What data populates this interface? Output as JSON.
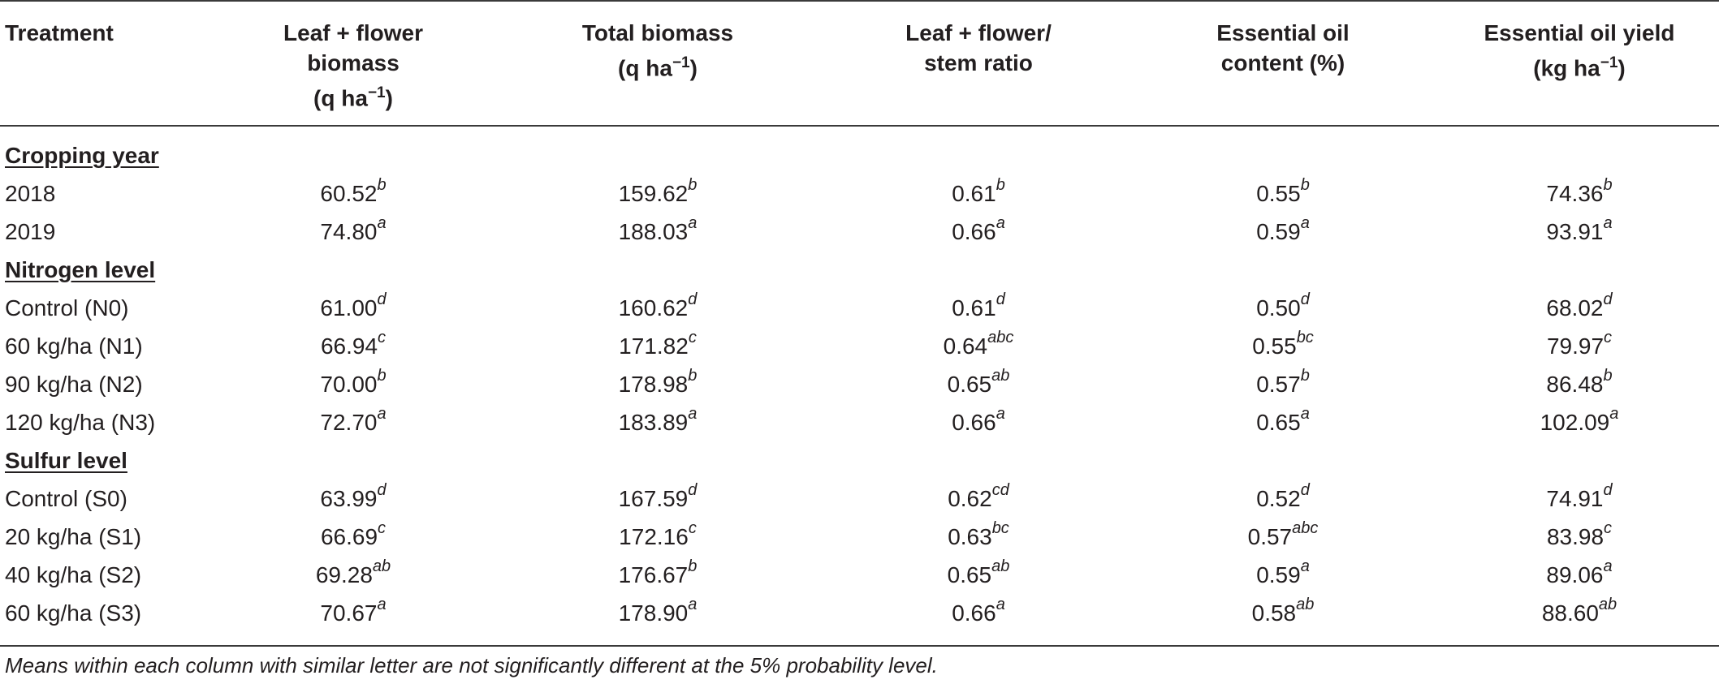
{
  "headers": [
    "Treatment",
    "Leaf + flower biomass (q ha−1)",
    "Total biomass (q ha−1)",
    "Leaf + flower/ stem ratio",
    "Essential oil content (%)",
    "Essential oil yield (kg ha−1)"
  ],
  "header_lines": {
    "c0": [
      "Treatment"
    ],
    "c1": [
      "Leaf + flower",
      "biomass",
      "(q ha",
      "−1",
      ")"
    ],
    "c2": [
      "Total biomass",
      "(q ha",
      "−1",
      ")"
    ],
    "c3": [
      "Leaf + flower/",
      "stem ratio"
    ],
    "c4": [
      "Essential oil",
      "content (%)"
    ],
    "c5": [
      "Essential oil yield",
      "(kg ha",
      "−1",
      ")"
    ]
  },
  "sections": [
    {
      "title": "Cropping year",
      "rows": [
        {
          "label": "2018",
          "cells": [
            [
              "60.52",
              "b"
            ],
            [
              "159.62",
              "b"
            ],
            [
              "0.61",
              "b"
            ],
            [
              "0.55",
              "b"
            ],
            [
              "74.36",
              "b"
            ]
          ]
        },
        {
          "label": "2019",
          "cells": [
            [
              "74.80",
              "a"
            ],
            [
              "188.03",
              "a"
            ],
            [
              "0.66",
              "a"
            ],
            [
              "0.59",
              "a"
            ],
            [
              "93.91",
              "a"
            ]
          ]
        }
      ]
    },
    {
      "title": "Nitrogen level",
      "rows": [
        {
          "label": "Control (N0)",
          "cells": [
            [
              "61.00",
              "d"
            ],
            [
              "160.62",
              "d"
            ],
            [
              "0.61",
              "d"
            ],
            [
              "0.50",
              "d"
            ],
            [
              "68.02",
              "d"
            ]
          ]
        },
        {
          "label": "60 kg/ha (N1)",
          "cells": [
            [
              "66.94",
              "c"
            ],
            [
              "171.82",
              "c"
            ],
            [
              "0.64",
              "abc"
            ],
            [
              "0.55",
              "bc"
            ],
            [
              "79.97",
              "c"
            ]
          ]
        },
        {
          "label": "90 kg/ha (N2)",
          "cells": [
            [
              "70.00",
              "b"
            ],
            [
              "178.98",
              "b"
            ],
            [
              "0.65",
              "ab"
            ],
            [
              "0.57",
              "b"
            ],
            [
              "86.48",
              "b"
            ]
          ]
        },
        {
          "label": "120 kg/ha (N3)",
          "cells": [
            [
              "72.70",
              "a"
            ],
            [
              "183.89",
              "a"
            ],
            [
              "0.66",
              "a"
            ],
            [
              "0.65",
              "a"
            ],
            [
              "102.09",
              "a"
            ]
          ]
        }
      ]
    },
    {
      "title": "Sulfur level",
      "rows": [
        {
          "label": "Control (S0)",
          "cells": [
            [
              "63.99",
              "d"
            ],
            [
              "167.59",
              "d"
            ],
            [
              "0.62",
              "cd"
            ],
            [
              "0.52",
              "d"
            ],
            [
              "74.91",
              "d"
            ]
          ]
        },
        {
          "label": "20 kg/ha (S1)",
          "cells": [
            [
              "66.69",
              "c"
            ],
            [
              "172.16",
              "c"
            ],
            [
              "0.63",
              "bc"
            ],
            [
              "0.57",
              "abc"
            ],
            [
              "83.98",
              "c"
            ]
          ]
        },
        {
          "label": "40 kg/ha (S2)",
          "cells": [
            [
              "69.28",
              "ab"
            ],
            [
              "176.67",
              "b"
            ],
            [
              "0.65",
              "ab"
            ],
            [
              "0.59",
              "a"
            ],
            [
              "89.06",
              "a"
            ]
          ]
        },
        {
          "label": "60 kg/ha (S3)",
          "cells": [
            [
              "70.67",
              "a"
            ],
            [
              "178.90",
              "a"
            ],
            [
              "0.66",
              "a"
            ],
            [
              "0.58",
              "ab"
            ],
            [
              "88.60",
              "ab"
            ]
          ]
        }
      ]
    }
  ],
  "footnote": "Means within each column with similar letter are not significantly different at the 5% probability level."
}
